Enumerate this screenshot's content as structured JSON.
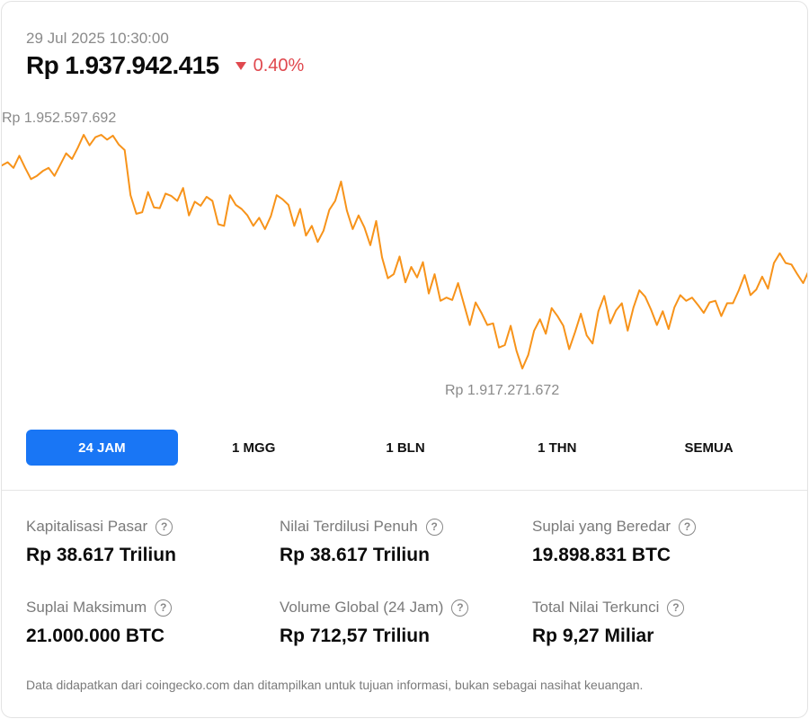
{
  "header": {
    "timestamp": "29 Jul 2025 10:30:00",
    "price": "Rp 1.937.942.415",
    "change": "0.40%",
    "change_direction": "down",
    "change_icon": "triangle-down-icon"
  },
  "colors": {
    "line": "#f7931a",
    "negative": "#e0484e",
    "active_tab": "#1976f5"
  },
  "chart_data": {
    "type": "line",
    "high_label": "Rp 1.952.597.692",
    "low_label": "Rp 1.917.271.672",
    "high_value": 1952597692,
    "low_value": 1917271672,
    "values": [
      1942.9,
      1943.3,
      1942.6,
      1944.1,
      1942.6,
      1941.2,
      1941.6,
      1942.2,
      1942.6,
      1941.6,
      1943.0,
      1944.4,
      1943.7,
      1945.1,
      1946.7,
      1945.4,
      1946.4,
      1946.7,
      1946.1,
      1946.6,
      1945.5,
      1944.8,
      1939.2,
      1936.9,
      1937.1,
      1939.6,
      1937.7,
      1937.6,
      1939.4,
      1939.1,
      1938.5,
      1940.1,
      1936.7,
      1938.4,
      1937.9,
      1939.0,
      1938.5,
      1935.6,
      1935.4,
      1939.2,
      1938.0,
      1937.5,
      1936.7,
      1935.4,
      1936.4,
      1935.0,
      1936.6,
      1939.2,
      1938.7,
      1938.0,
      1935.4,
      1937.5,
      1934.2,
      1935.4,
      1933.4,
      1934.8,
      1937.4,
      1938.5,
      1940.9,
      1937.3,
      1935.0,
      1936.7,
      1935.2,
      1933.0,
      1936.0,
      1931.5,
      1928.9,
      1929.4,
      1931.6,
      1928.4,
      1930.3,
      1929.0,
      1930.9,
      1927.0,
      1929.4,
      1926.1,
      1926.5,
      1926.2,
      1928.3,
      1925.7,
      1923.1,
      1925.9,
      1924.6,
      1923.1,
      1923.3,
      1920.3,
      1920.6,
      1923.0,
      1919.9,
      1917.7,
      1919.4,
      1922.4,
      1923.8,
      1922.0,
      1925.2,
      1924.2,
      1923.0,
      1920.1,
      1922.2,
      1924.5,
      1921.8,
      1920.8,
      1924.8,
      1926.7,
      1923.3,
      1924.9,
      1925.8,
      1922.4,
      1925.3,
      1927.4,
      1926.6,
      1925.0,
      1923.1,
      1924.8,
      1922.6,
      1925.3,
      1926.8,
      1926.1,
      1926.5,
      1925.6,
      1924.6,
      1925.9,
      1926.1,
      1924.2,
      1925.8,
      1925.8,
      1927.4,
      1929.3,
      1926.8,
      1927.5,
      1929.1,
      1927.6,
      1930.8,
      1932.0,
      1930.8,
      1930.6,
      1929.4,
      1928.3,
      1929.9
    ],
    "series": [
      {
        "values": "see values"
      }
    ],
    "grid": false,
    "legend": "none"
  },
  "tabs": [
    {
      "label": "24 JAM",
      "active": true
    },
    {
      "label": "1 MGG",
      "active": false
    },
    {
      "label": "1 BLN",
      "active": false
    },
    {
      "label": "1 THN",
      "active": false
    },
    {
      "label": "SEMUA",
      "active": false
    }
  ],
  "stats": [
    {
      "label": "Kapitalisasi Pasar",
      "value": "Rp 38.617 Triliun",
      "icon": "question-mark-circle-icon"
    },
    {
      "label": "Nilai Terdilusi Penuh",
      "value": "Rp 38.617 Triliun",
      "icon": "question-mark-circle-icon"
    },
    {
      "label": "Suplai yang Beredar",
      "value": "19.898.831 BTC",
      "icon": "question-mark-circle-icon"
    },
    {
      "label": "Suplai Maksimum",
      "value": "21.000.000 BTC",
      "icon": "question-mark-circle-icon"
    },
    {
      "label": "Volume Global (24 Jam)",
      "value": "Rp 712,57 Triliun",
      "icon": "question-mark-circle-icon"
    },
    {
      "label": "Total Nilai Terkunci",
      "value": "Rp 9,27 Miliar",
      "icon": "question-mark-circle-icon"
    }
  ],
  "disclaimer": "Data didapatkan dari coingecko.com dan ditampilkan untuk tujuan informasi, bukan sebagai nasihat keuangan."
}
